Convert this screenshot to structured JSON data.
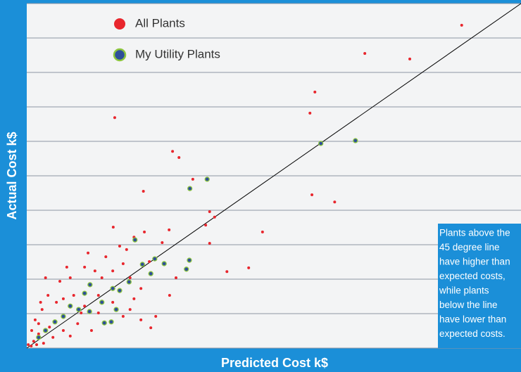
{
  "chart_data": {
    "type": "scatter",
    "xlabel": "Predicted Cost k$",
    "ylabel": "Actual Cost k$",
    "xlim": [
      0,
      100
    ],
    "ylim": [
      0,
      100
    ],
    "yticks": [
      0,
      10,
      20,
      30,
      40,
      50,
      60,
      70,
      80,
      90,
      100
    ],
    "grid": true,
    "annotation": [
      "Plants above the",
      "45 degree line",
      "have higher than",
      "expected costs,",
      "while plants",
      "below the line",
      "have lower than",
      "expected costs."
    ],
    "series": [
      {
        "name": "All Plants",
        "color": "#e8262d",
        "x": [
          88.0,
          68.4,
          77.5,
          58.3,
          57.3,
          17.8,
          29.5,
          30.8,
          23.6,
          33.6,
          57.7,
          62.3,
          37.0,
          38.0,
          36.2,
          47.7,
          28.8,
          37.0,
          17.5,
          40.5,
          44.9,
          21.7,
          24.8,
          25.1,
          26.1,
          28.9,
          20.2,
          19.5,
          16.0,
          13.8,
          11.7,
          8.8,
          8.1,
          6.7,
          4.3,
          3.8,
          6.0,
          3.1,
          1.7,
          1.0,
          1.4,
          2.4,
          4.6,
          7.4,
          10.3,
          13.1,
          19.5,
          21.7,
          23.1,
          30.2,
          23.8,
          27.4,
          20.9,
          14.5,
          9.5,
          11.0,
          5.3,
          3.4,
          8.8,
          15.2,
          17.4,
          12.4,
          18.8,
          14.5,
          17.4,
          23.1,
          7.4,
          2.4,
          11.7,
          20.9,
          2.8,
          0.3,
          0.9,
          2.0
        ],
        "values": [
          93.7,
          85.5,
          83.9,
          74.3,
          68.2,
          66.9,
          57.1,
          55.3,
          45.5,
          49.0,
          44.5,
          42.4,
          39.6,
          38.0,
          35.7,
          33.7,
          34.3,
          30.4,
          35.1,
          22.2,
          23.3,
          32.2,
          25.1,
          5.9,
          9.2,
          15.3,
          28.6,
          24.5,
          26.5,
          22.4,
          23.5,
          20.4,
          23.5,
          19.4,
          15.3,
          20.4,
          13.3,
          11.2,
          8.2,
          5.1,
          2.0,
          4.1,
          6.1,
          5.1,
          7.1,
          5.1,
          9.2,
          14.3,
          17.3,
          20.4,
          33.7,
          30.6,
          20.4,
          15.3,
          15.3,
          10.2,
          3.1,
          1.4,
          3.5,
          20.4,
          22.4,
          27.6,
          29.6,
          10.2,
          13.3,
          8.2,
          14.3,
          7.1,
          12.2,
          11.2,
          13.3,
          1.0,
          0.6,
          1.0
        ]
      },
      {
        "name": "My Utility Plants",
        "color": "#2e4f9a",
        "edgecolor": "#8dc63f",
        "x": [
          59.5,
          66.5,
          33.0,
          36.5,
          21.9,
          25.9,
          23.4,
          27.8,
          32.9,
          32.3,
          25.1,
          20.7,
          18.8,
          17.4,
          12.8,
          15.2,
          12.7,
          8.8,
          10.5,
          5.7,
          3.8,
          2.4,
          15.7,
          18.1,
          11.7,
          7.4,
          17.1
        ],
        "values": [
          59.4,
          60.2,
          46.3,
          49.0,
          31.4,
          25.9,
          24.3,
          24.5,
          25.5,
          22.9,
          21.6,
          19.2,
          16.7,
          17.3,
          18.4,
          13.3,
          10.6,
          12.2,
          11.2,
          7.6,
          5.1,
          3.1,
          7.3,
          11.2,
          15.9,
          9.2,
          7.6
        ]
      }
    ]
  }
}
